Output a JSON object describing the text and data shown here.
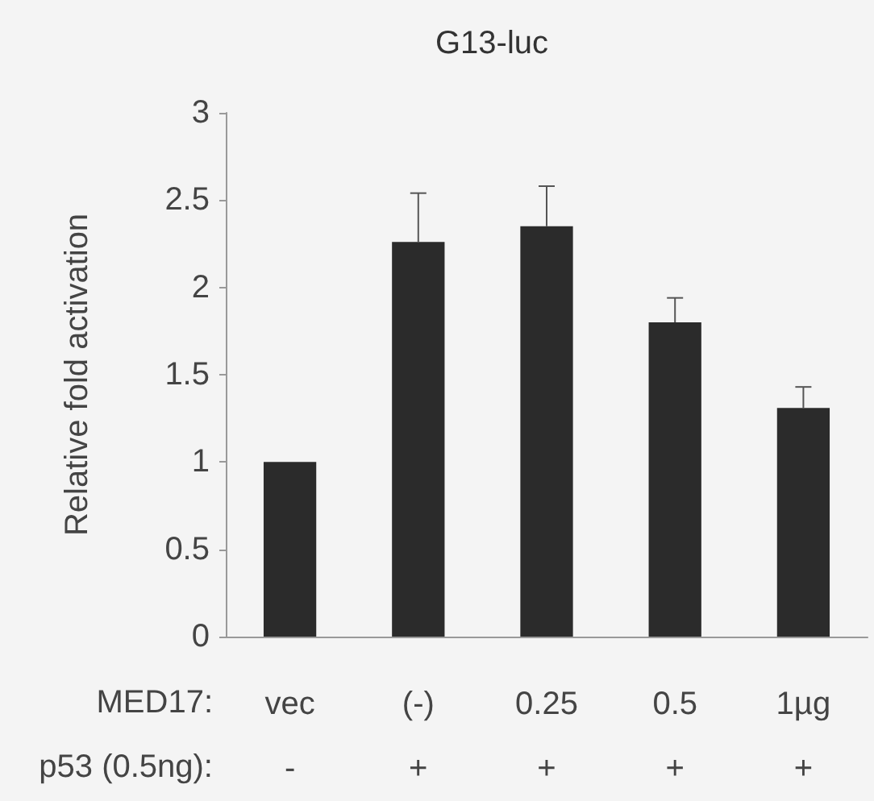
{
  "chart_data": {
    "type": "bar",
    "title": "G13-luc",
    "ylabel": "Relative fold activation",
    "categories": [
      "vec\n-",
      "(-)\n+",
      "0.25\n+",
      "0.5\n+",
      "1µg\n+"
    ],
    "values": [
      1.0,
      2.26,
      2.35,
      1.8,
      1.31
    ],
    "errors": [
      null,
      [
        2.26,
        2.54
      ],
      [
        2.35,
        2.58
      ],
      [
        1.8,
        1.94
      ],
      [
        1.31,
        1.43
      ]
    ],
    "color": "#2b2b2b",
    "ylim": [
      0,
      3
    ],
    "yticks": [
      0,
      0.5,
      1,
      1.5,
      2,
      2.5,
      3
    ],
    "annotations": [
      "MED17:",
      "p53 (0.5ng):"
    ],
    "grid": false
  }
}
